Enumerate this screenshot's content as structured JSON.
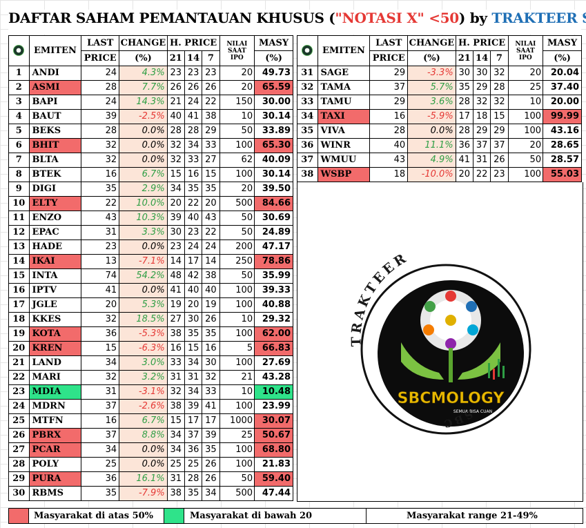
{
  "title": {
    "part1": "DAFTAR SAHAM PEMANTAUAN KHUSUS (",
    "part2": "\"NOTASI X\" <50",
    "part3": ") by ",
    "part4": "TRAKTEER SBC"
  },
  "headers": {
    "emiten": "EMITEN",
    "last_1": "LAST",
    "last_2": "PRICE",
    "change_1": "CHANGE",
    "change_2": "(%)",
    "hprice": "H. PRICE",
    "h21": "21",
    "h14": "14",
    "h7": "7",
    "ipo_1": "NILAI",
    "ipo_2": "SAAT",
    "ipo_3": "IPO",
    "masy_1": "MASY",
    "masy_2": "(%)"
  },
  "rows_left": [
    {
      "no": "1",
      "emiten": "ANDI",
      "last": "24",
      "chg": "4.3%",
      "h21": "23",
      "h14": "23",
      "h7": "23",
      "ipo": "20",
      "masy": "49.73",
      "hl": ""
    },
    {
      "no": "2",
      "emiten": "ASMI",
      "last": "28",
      "chg": "7.7%",
      "h21": "26",
      "h14": "26",
      "h7": "26",
      "ipo": "20",
      "masy": "65.59",
      "hl": "red"
    },
    {
      "no": "3",
      "emiten": "BAPI",
      "last": "24",
      "chg": "14.3%",
      "h21": "21",
      "h14": "24",
      "h7": "22",
      "ipo": "150",
      "masy": "30.00",
      "hl": ""
    },
    {
      "no": "4",
      "emiten": "BAUT",
      "last": "39",
      "chg": "-2.5%",
      "h21": "40",
      "h14": "41",
      "h7": "38",
      "ipo": "10",
      "masy": "30.14",
      "hl": ""
    },
    {
      "no": "5",
      "emiten": "BEKS",
      "last": "28",
      "chg": "0.0%",
      "h21": "28",
      "h14": "28",
      "h7": "29",
      "ipo": "50",
      "masy": "33.89",
      "hl": ""
    },
    {
      "no": "6",
      "emiten": "BHIT",
      "last": "32",
      "chg": "0.0%",
      "h21": "32",
      "h14": "34",
      "h7": "33",
      "ipo": "100",
      "masy": "65.30",
      "hl": "red"
    },
    {
      "no": "7",
      "emiten": "BLTA",
      "last": "32",
      "chg": "0.0%",
      "h21": "32",
      "h14": "33",
      "h7": "27",
      "ipo": "62",
      "masy": "40.09",
      "hl": ""
    },
    {
      "no": "8",
      "emiten": "BTEK",
      "last": "16",
      "chg": "6.7%",
      "h21": "15",
      "h14": "16",
      "h7": "15",
      "ipo": "100",
      "masy": "30.14",
      "hl": ""
    },
    {
      "no": "9",
      "emiten": "DIGI",
      "last": "35",
      "chg": "2.9%",
      "h21": "34",
      "h14": "35",
      "h7": "35",
      "ipo": "20",
      "masy": "39.50",
      "hl": ""
    },
    {
      "no": "10",
      "emiten": "ELTY",
      "last": "22",
      "chg": "10.0%",
      "h21": "20",
      "h14": "22",
      "h7": "20",
      "ipo": "500",
      "masy": "84.66",
      "hl": "red"
    },
    {
      "no": "11",
      "emiten": "ENZO",
      "last": "43",
      "chg": "10.3%",
      "h21": "39",
      "h14": "40",
      "h7": "43",
      "ipo": "50",
      "masy": "30.69",
      "hl": ""
    },
    {
      "no": "12",
      "emiten": "EPAC",
      "last": "31",
      "chg": "3.3%",
      "h21": "30",
      "h14": "23",
      "h7": "22",
      "ipo": "50",
      "masy": "24.89",
      "hl": ""
    },
    {
      "no": "13",
      "emiten": "HADE",
      "last": "23",
      "chg": "0.0%",
      "h21": "23",
      "h14": "24",
      "h7": "24",
      "ipo": "200",
      "masy": "47.17",
      "hl": ""
    },
    {
      "no": "14",
      "emiten": "IKAI",
      "last": "13",
      "chg": "-7.1%",
      "h21": "14",
      "h14": "17",
      "h7": "14",
      "ipo": "250",
      "masy": "78.86",
      "hl": "red"
    },
    {
      "no": "15",
      "emiten": "INTA",
      "last": "74",
      "chg": "54.2%",
      "h21": "48",
      "h14": "42",
      "h7": "38",
      "ipo": "50",
      "masy": "35.99",
      "hl": ""
    },
    {
      "no": "16",
      "emiten": "IPTV",
      "last": "41",
      "chg": "0.0%",
      "h21": "41",
      "h14": "40",
      "h7": "40",
      "ipo": "100",
      "masy": "39.33",
      "hl": ""
    },
    {
      "no": "17",
      "emiten": "JGLE",
      "last": "20",
      "chg": "5.3%",
      "h21": "19",
      "h14": "20",
      "h7": "19",
      "ipo": "100",
      "masy": "40.88",
      "hl": ""
    },
    {
      "no": "18",
      "emiten": "KKES",
      "last": "32",
      "chg": "18.5%",
      "h21": "27",
      "h14": "30",
      "h7": "26",
      "ipo": "10",
      "masy": "29.32",
      "hl": ""
    },
    {
      "no": "19",
      "emiten": "KOTA",
      "last": "36",
      "chg": "-5.3%",
      "h21": "38",
      "h14": "35",
      "h7": "35",
      "ipo": "100",
      "masy": "62.00",
      "hl": "red"
    },
    {
      "no": "20",
      "emiten": "KREN",
      "last": "15",
      "chg": "-6.3%",
      "h21": "16",
      "h14": "15",
      "h7": "16",
      "ipo": "5",
      "masy": "66.83",
      "hl": "red"
    },
    {
      "no": "21",
      "emiten": "LAND",
      "last": "34",
      "chg": "3.0%",
      "h21": "33",
      "h14": "34",
      "h7": "30",
      "ipo": "100",
      "masy": "27.69",
      "hl": ""
    },
    {
      "no": "22",
      "emiten": "MARI",
      "last": "32",
      "chg": "3.2%",
      "h21": "31",
      "h14": "31",
      "h7": "32",
      "ipo": "21",
      "masy": "43.28",
      "hl": ""
    },
    {
      "no": "23",
      "emiten": "MDIA",
      "last": "31",
      "chg": "-3.1%",
      "h21": "32",
      "h14": "34",
      "h7": "33",
      "ipo": "10",
      "masy": "10.48",
      "hl": "green"
    },
    {
      "no": "24",
      "emiten": "MDRN",
      "last": "37",
      "chg": "-2.6%",
      "h21": "38",
      "h14": "39",
      "h7": "41",
      "ipo": "100",
      "masy": "23.99",
      "hl": ""
    },
    {
      "no": "25",
      "emiten": "MTFN",
      "last": "16",
      "chg": "6.7%",
      "h21": "15",
      "h14": "17",
      "h7": "17",
      "ipo": "1000",
      "masy": "30.07",
      "hl": "masyred"
    },
    {
      "no": "26",
      "emiten": "PBRX",
      "last": "37",
      "chg": "8.8%",
      "h21": "34",
      "h14": "37",
      "h7": "39",
      "ipo": "25",
      "masy": "50.67",
      "hl": "red"
    },
    {
      "no": "27",
      "emiten": "PCAR",
      "last": "34",
      "chg": "0.0%",
      "h21": "34",
      "h14": "36",
      "h7": "35",
      "ipo": "100",
      "masy": "68.80",
      "hl": "red"
    },
    {
      "no": "28",
      "emiten": "POLY",
      "last": "25",
      "chg": "0.0%",
      "h21": "25",
      "h14": "25",
      "h7": "26",
      "ipo": "100",
      "masy": "21.83",
      "hl": ""
    },
    {
      "no": "29",
      "emiten": "PURA",
      "last": "36",
      "chg": "16.1%",
      "h21": "31",
      "h14": "28",
      "h7": "26",
      "ipo": "50",
      "masy": "59.40",
      "hl": "red"
    },
    {
      "no": "30",
      "emiten": "RBMS",
      "last": "35",
      "chg": "-7.9%",
      "h21": "38",
      "h14": "35",
      "h7": "34",
      "ipo": "500",
      "masy": "47.44",
      "hl": ""
    }
  ],
  "rows_right": [
    {
      "no": "31",
      "emiten": "SAGE",
      "last": "29",
      "chg": "-3.3%",
      "h21": "30",
      "h14": "30",
      "h7": "32",
      "ipo": "20",
      "masy": "20.04",
      "hl": ""
    },
    {
      "no": "32",
      "emiten": "TAMA",
      "last": "37",
      "chg": "5.7%",
      "h21": "35",
      "h14": "29",
      "h7": "28",
      "ipo": "25",
      "masy": "37.40",
      "hl": ""
    },
    {
      "no": "33",
      "emiten": "TAMU",
      "last": "29",
      "chg": "3.6%",
      "h21": "28",
      "h14": "32",
      "h7": "32",
      "ipo": "10",
      "masy": "20.00",
      "hl": ""
    },
    {
      "no": "34",
      "emiten": "TAXI",
      "last": "16",
      "chg": "-5.9%",
      "h21": "17",
      "h14": "18",
      "h7": "15",
      "ipo": "100",
      "masy": "99.99",
      "hl": "red"
    },
    {
      "no": "35",
      "emiten": "VIVA",
      "last": "28",
      "chg": "0.0%",
      "h21": "28",
      "h14": "29",
      "h7": "29",
      "ipo": "100",
      "masy": "43.16",
      "hl": ""
    },
    {
      "no": "36",
      "emiten": "WINR",
      "last": "40",
      "chg": "11.1%",
      "h21": "36",
      "h14": "37",
      "h7": "37",
      "ipo": "20",
      "masy": "28.65",
      "hl": ""
    },
    {
      "no": "37",
      "emiten": "WMUU",
      "last": "43",
      "chg": "4.9%",
      "h21": "41",
      "h14": "31",
      "h7": "26",
      "ipo": "50",
      "masy": "28.57",
      "hl": ""
    },
    {
      "no": "38",
      "emiten": "WSBP",
      "last": "18",
      "chg": "-10.0%",
      "h21": "20",
      "h14": "22",
      "h7": "23",
      "ipo": "100",
      "masy": "55.03",
      "hl": "red"
    }
  ],
  "logo": {
    "arc_top": "TRAKTEER",
    "brand": "SBCMOLOGY",
    "tagline": "SEMUA BISA CUAN",
    "arc_bottom": "SBC"
  },
  "legend": {
    "red_label": "Masyarakat di atas 50%",
    "green_label": "Masyarakat di bawah 20",
    "range_label": "Masyarakat range 21-49%"
  },
  "colors": {
    "highlight_red": "#f26b6b",
    "highlight_green": "#2fe38a",
    "change_bg": "#fce5d8",
    "positive": "#2e9e44",
    "negative": "#e53935",
    "title_accent_red": "#e53935",
    "title_accent_blue": "#1f6fb5"
  }
}
